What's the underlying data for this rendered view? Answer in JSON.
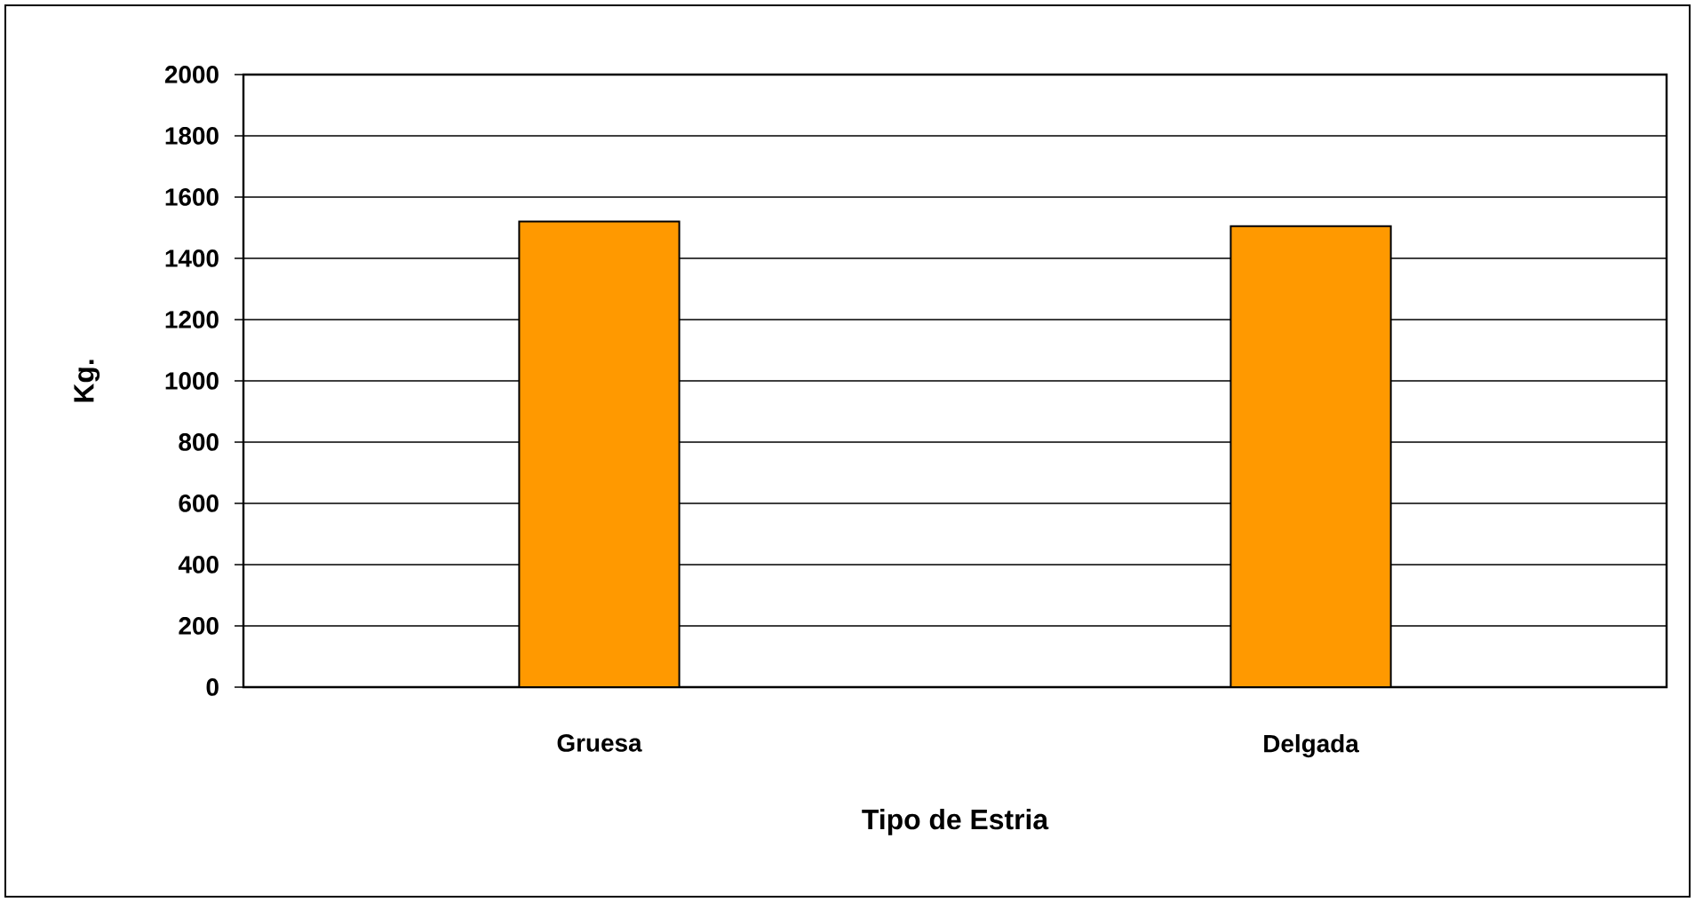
{
  "chart_data": {
    "type": "bar",
    "xlabel": "Tipo de Estria",
    "ylabel": "Kg.",
    "categories": [
      "Gruesa",
      "Delgada"
    ],
    "values": [
      1520,
      1505
    ],
    "color": "#ff9900",
    "ylim": [
      0,
      2000
    ],
    "yticks": [
      0,
      200,
      400,
      600,
      800,
      1000,
      1200,
      1400,
      1600,
      1800,
      2000
    ],
    "grid": "y"
  }
}
